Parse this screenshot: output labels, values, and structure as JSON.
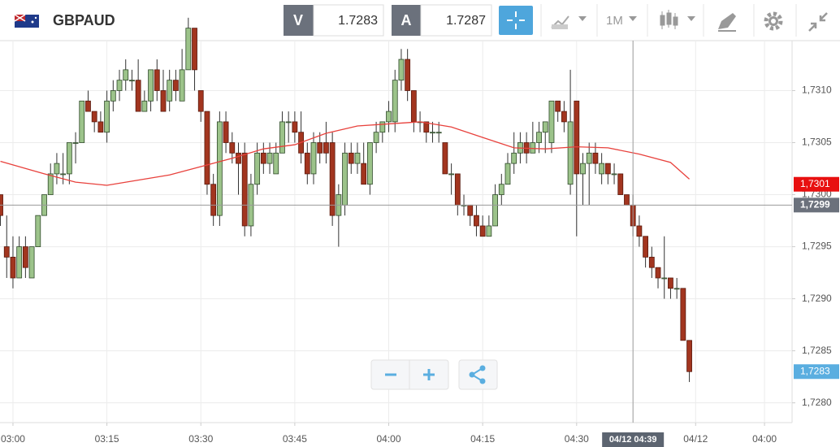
{
  "header": {
    "symbol": "GBPAUD",
    "bid_label": "V",
    "bid": 1.7283,
    "ask_label": "A",
    "ask": 1.7287,
    "timeframe": "1M"
  },
  "chart_data": {
    "type": "candlestick",
    "x": [
      178,
      179,
      180,
      181,
      182,
      183,
      184,
      185,
      186,
      187,
      188,
      189,
      190,
      191,
      192,
      193,
      194,
      195,
      196,
      197,
      198,
      199,
      200,
      201,
      202,
      203,
      204,
      205,
      206,
      207,
      208,
      209,
      210,
      211,
      212,
      213,
      214,
      215,
      216,
      217,
      218,
      219,
      220,
      221,
      222,
      223,
      224,
      225,
      226,
      227,
      228,
      229,
      230,
      231,
      232,
      233,
      234,
      235,
      236,
      237,
      238,
      239,
      240,
      241,
      242,
      243,
      244,
      245,
      246,
      247,
      248,
      249,
      250,
      251,
      252,
      253,
      254,
      255,
      256,
      257,
      258,
      259,
      260,
      261,
      262,
      263,
      264,
      265,
      266,
      267,
      268,
      269,
      270,
      271,
      272,
      273,
      274,
      275,
      276,
      277,
      278,
      279,
      280,
      281,
      282,
      283,
      284,
      285,
      286,
      287,
      288
    ],
    "open": [
      1.73,
      1.7295,
      1.7294,
      1.7292,
      1.7295,
      1.7292,
      1.7295,
      1.7298,
      1.73,
      1.7302,
      1.7302,
      1.7302,
      1.7305,
      1.7305,
      1.7309,
      1.7308,
      1.7307,
      1.7306,
      1.7309,
      1.731,
      1.7311,
      1.7311,
      1.7311,
      1.7308,
      1.7309,
      1.7312,
      1.731,
      1.7309,
      1.7311,
      1.7309,
      1.7312,
      1.7316,
      1.731,
      1.7308,
      1.7301,
      1.7298,
      1.7307,
      1.7305,
      1.7304,
      1.7304,
      1.7297,
      1.7301,
      1.7304,
      1.7303,
      1.7302,
      1.7304,
      1.7307,
      1.7307,
      1.7306,
      1.7304,
      1.7302,
      1.7305,
      1.7305,
      1.7305,
      1.7298,
      1.7299,
      1.7304,
      1.7303,
      1.7303,
      1.7301,
      1.7305,
      1.7306,
      1.7307,
      1.7307,
      1.7311,
      1.7313,
      1.731,
      1.7307,
      1.7307,
      1.7306,
      1.7306,
      1.7305,
      1.7302,
      1.7302,
      1.7299,
      1.7299,
      1.7298,
      1.7297,
      1.7296,
      1.7297,
      1.73,
      1.7301,
      1.7303,
      1.7304,
      1.7305,
      1.7304,
      1.7305,
      1.7306,
      1.7305,
      1.7309,
      1.7308,
      1.7301,
      1.7309,
      1.7302,
      1.7303,
      1.7304,
      1.7302,
      1.7303,
      1.7302,
      1.7302,
      1.73,
      1.7299,
      1.7297,
      1.7296,
      1.7294,
      1.7293,
      1.7292,
      1.7292,
      1.7291,
      1.7291,
      1.7286
    ],
    "high": [
      1.73,
      1.7298,
      1.7296,
      1.7296,
      1.7296,
      1.7295,
      1.7298,
      1.73,
      1.7303,
      1.7304,
      1.7304,
      1.7305,
      1.7306,
      1.7309,
      1.731,
      1.7308,
      1.7308,
      1.731,
      1.7311,
      1.7312,
      1.7313,
      1.7312,
      1.7313,
      1.731,
      1.7312,
      1.7313,
      1.7312,
      1.7312,
      1.7312,
      1.7314,
      1.7317,
      1.7316,
      1.731,
      1.7308,
      1.7302,
      1.7308,
      1.7308,
      1.7306,
      1.7305,
      1.7305,
      1.7302,
      1.7305,
      1.7305,
      1.7305,
      1.7305,
      1.7308,
      1.7308,
      1.7308,
      1.7308,
      1.7305,
      1.7306,
      1.7306,
      1.7307,
      1.7306,
      1.7301,
      1.7305,
      1.7305,
      1.7305,
      1.7305,
      1.7305,
      1.7307,
      1.7307,
      1.7309,
      1.7312,
      1.7314,
      1.7314,
      1.731,
      1.7308,
      1.7307,
      1.7307,
      1.7307,
      1.7305,
      1.7303,
      1.7302,
      1.73,
      1.7299,
      1.7299,
      1.7298,
      1.7298,
      1.7301,
      1.7302,
      1.7304,
      1.7306,
      1.7306,
      1.7306,
      1.7307,
      1.7307,
      1.7307,
      1.7309,
      1.7309,
      1.7309,
      1.7312,
      1.7309,
      1.7304,
      1.7305,
      1.7305,
      1.7304,
      1.7303,
      1.7303,
      1.7302,
      1.73,
      1.73,
      1.7298,
      1.7296,
      1.7295,
      1.7293,
      1.7296,
      1.7292,
      1.7292,
      1.7291,
      1.7286
    ],
    "low": [
      1.7297,
      1.7292,
      1.7291,
      1.7292,
      1.7292,
      1.7292,
      1.7295,
      1.7298,
      1.73,
      1.7301,
      1.7301,
      1.7301,
      1.7303,
      1.7305,
      1.7308,
      1.7306,
      1.7306,
      1.7305,
      1.7308,
      1.7309,
      1.731,
      1.731,
      1.7308,
      1.7308,
      1.7308,
      1.7309,
      1.7308,
      1.7308,
      1.7309,
      1.7309,
      1.7312,
      1.731,
      1.7307,
      1.73,
      1.7297,
      1.7297,
      1.7304,
      1.7303,
      1.73,
      1.7296,
      1.7296,
      1.73,
      1.7302,
      1.7302,
      1.7302,
      1.7304,
      1.7305,
      1.7305,
      1.7303,
      1.7301,
      1.7301,
      1.7303,
      1.7303,
      1.7297,
      1.7295,
      1.7298,
      1.7302,
      1.7302,
      1.7301,
      1.73,
      1.7304,
      1.7305,
      1.7306,
      1.7306,
      1.731,
      1.7309,
      1.7306,
      1.7306,
      1.7305,
      1.7305,
      1.7305,
      1.7302,
      1.73,
      1.7298,
      1.7298,
      1.7297,
      1.7296,
      1.7296,
      1.7296,
      1.7297,
      1.7299,
      1.7301,
      1.7302,
      1.7303,
      1.7303,
      1.7304,
      1.7304,
      1.7304,
      1.7304,
      1.7307,
      1.7306,
      1.73,
      1.7296,
      1.7299,
      1.7299,
      1.7302,
      1.7301,
      1.7301,
      1.7301,
      1.73,
      1.7299,
      1.7296,
      1.7295,
      1.7293,
      1.7292,
      1.7291,
      1.729,
      1.729,
      1.729,
      1.7286,
      1.7282
    ],
    "close": [
      1.7298,
      1.7294,
      1.7292,
      1.7295,
      1.7293,
      1.7295,
      1.7298,
      1.73,
      1.7302,
      1.7303,
      1.7302,
      1.7305,
      1.7305,
      1.7309,
      1.7308,
      1.7307,
      1.7306,
      1.7309,
      1.731,
      1.7311,
      1.7312,
      1.7311,
      1.7308,
      1.7309,
      1.7312,
      1.731,
      1.7308,
      1.7311,
      1.731,
      1.7312,
      1.7316,
      1.7312,
      1.7308,
      1.7301,
      1.7298,
      1.7307,
      1.7305,
      1.7304,
      1.7303,
      1.7297,
      1.7301,
      1.7304,
      1.7303,
      1.7304,
      1.7304,
      1.7307,
      1.7307,
      1.7306,
      1.7304,
      1.7302,
      1.7305,
      1.7304,
      1.7304,
      1.7298,
      1.73,
      1.7304,
      1.7303,
      1.7304,
      1.7301,
      1.7305,
      1.7306,
      1.7307,
      1.7308,
      1.7311,
      1.7313,
      1.731,
      1.7307,
      1.7307,
      1.7306,
      1.7306,
      1.7306,
      1.7302,
      1.7302,
      1.7299,
      1.7299,
      1.7298,
      1.7297,
      1.7296,
      1.7297,
      1.73,
      1.7301,
      1.7303,
      1.7304,
      1.7305,
      1.7304,
      1.7305,
      1.7306,
      1.7307,
      1.7309,
      1.7308,
      1.7307,
      1.7307,
      1.7302,
      1.7303,
      1.7304,
      1.7303,
      1.7303,
      1.7302,
      1.7302,
      1.73,
      1.7299,
      1.7297,
      1.7296,
      1.7294,
      1.7293,
      1.7292,
      1.7292,
      1.7291,
      1.7291,
      1.7286,
      1.7283
    ],
    "up_color": "#9cc38a",
    "down_color": "#a2351f",
    "ma": {
      "color": "#e8413c",
      "x": [
        178,
        185,
        190,
        195,
        200,
        205,
        210,
        215,
        220,
        225,
        230,
        235,
        240,
        245,
        250,
        255,
        260,
        265,
        270,
        275,
        280,
        285,
        288
      ],
      "values": [
        1.73032,
        1.7302,
        1.73012,
        1.73009,
        1.73014,
        1.73019,
        1.73027,
        1.73035,
        1.73044,
        1.73048,
        1.73059,
        1.73066,
        1.73068,
        1.7307,
        1.73065,
        1.73055,
        1.73045,
        1.73044,
        1.73046,
        1.73045,
        1.73039,
        1.73031,
        1.73015
      ]
    },
    "xlim": [
      177.93,
      304.4
    ],
    "ylim": [
      1.72781,
      1.73148
    ],
    "xticks": [
      {
        "value": 180,
        "label": "03:00"
      },
      {
        "value": 195,
        "label": "03:15"
      },
      {
        "value": 210,
        "label": "03:30"
      },
      {
        "value": 225,
        "label": "03:45"
      },
      {
        "value": 240,
        "label": "04:00"
      },
      {
        "value": 255,
        "label": "04:15"
      },
      {
        "value": 270,
        "label": "04:30"
      },
      {
        "value": 289,
        "label": "04/12"
      },
      {
        "value": 300,
        "label": "04:00"
      }
    ],
    "yticks": [
      {
        "value": 1.728,
        "label": "1,7280"
      },
      {
        "value": 1.7285,
        "label": "1,7285"
      },
      {
        "value": 1.729,
        "label": "1,7290"
      },
      {
        "value": 1.7295,
        "label": "1,7295"
      },
      {
        "value": 1.73,
        "label": "1,7300"
      },
      {
        "value": 1.7305,
        "label": "1,7305"
      },
      {
        "value": 1.731,
        "label": "1,7310"
      }
    ],
    "grid": true,
    "crosshair": {
      "x": {
        "value": 279,
        "label": "04/12 04:39"
      },
      "y": {
        "value": 1.7299,
        "label": "1,7299"
      }
    },
    "price_markers": [
      {
        "value": 1.7301,
        "label": "1,7301",
        "color": "#e81010"
      },
      {
        "value": 1.7283,
        "label": "1,7283",
        "color": "#5aaee0"
      }
    ]
  }
}
